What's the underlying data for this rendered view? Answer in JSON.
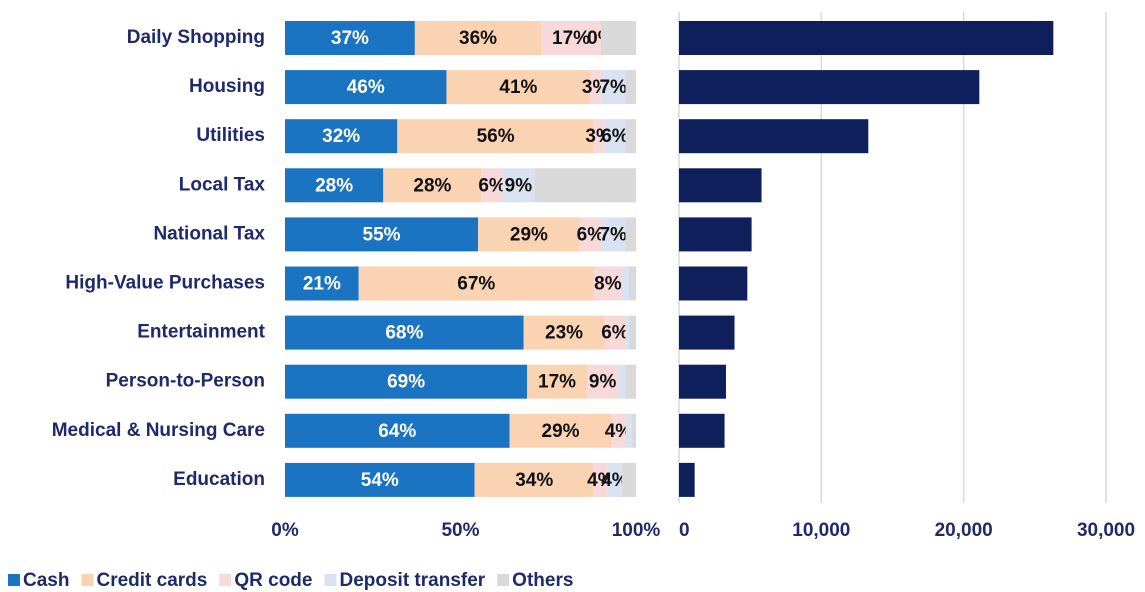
{
  "chart_data": [
    {
      "type": "stacked_bar_horizontal",
      "categories": [
        "Daily Shopping",
        "Housing",
        "Utilities",
        "Local Tax",
        "National Tax",
        "High-Value Purchases",
        "Entertainment",
        "Person-to-Person",
        "Medical & Nursing Care",
        "Education"
      ],
      "series": [
        {
          "name": "Cash",
          "color": "#1b74c2",
          "label_color": "#ffffff",
          "values": [
            37,
            46,
            32,
            28,
            55,
            21,
            68,
            69,
            64,
            54
          ],
          "value_labels": [
            "37%",
            "46%",
            "32%",
            "28%",
            "55%",
            "21%",
            "68%",
            "69%",
            "64%",
            "54%"
          ]
        },
        {
          "name": "Credit cards",
          "color": "#fad3b3",
          "label_color": "#111111",
          "values": [
            36,
            41,
            56,
            28,
            29,
            67,
            23,
            17,
            29,
            34
          ],
          "value_labels": [
            "36%",
            "41%",
            "56%",
            "28%",
            "29%",
            "67%",
            "23%",
            "17%",
            "29%",
            "34%"
          ]
        },
        {
          "name": "QR code",
          "color": "#f7d9d9",
          "label_color": "#111111",
          "values": [
            17,
            3,
            3,
            6,
            6,
            8,
            6,
            9,
            4,
            4
          ],
          "value_labels": [
            "17%",
            "3%",
            "3%",
            "6%",
            "6%",
            "8%",
            "6%",
            "9%",
            "4%",
            "4%"
          ]
        },
        {
          "name": "Deposit transfer",
          "color": "#d9e2f1",
          "label_color": "#111111",
          "values": [
            0,
            7,
            6,
            9,
            7,
            2,
            1,
            2,
            2,
            4
          ],
          "value_labels": [
            "0%",
            "7%",
            "6%",
            "9%",
            "7%",
            null,
            null,
            null,
            null,
            "4%"
          ]
        },
        {
          "name": "Others",
          "color": "#d9d9d9",
          "label_color": "#111111",
          "values": [
            10,
            3,
            3,
            29,
            3,
            2,
            2,
            3,
            1,
            4
          ],
          "value_labels": [
            null,
            null,
            null,
            null,
            null,
            null,
            null,
            null,
            null,
            null
          ]
        }
      ],
      "xlim": [
        0,
        100
      ],
      "xticks": [
        {
          "value": 0,
          "label": "0%"
        },
        {
          "value": 50,
          "label": "50%"
        },
        {
          "value": 100,
          "label": "100%"
        }
      ]
    },
    {
      "type": "bar_horizontal",
      "values": [
        26300,
        21100,
        13300,
        5800,
        5100,
        4800,
        3900,
        3300,
        3200,
        1100
      ],
      "color": "#0f1f5c",
      "xlim": [
        0,
        30000
      ],
      "xticks": [
        0,
        {
          "value": 10000,
          "label": "10,000"
        },
        {
          "value": 20000,
          "label": "20,000"
        },
        {
          "value": 30000,
          "label": "30,000"
        }
      ],
      "grid": true
    }
  ]
}
